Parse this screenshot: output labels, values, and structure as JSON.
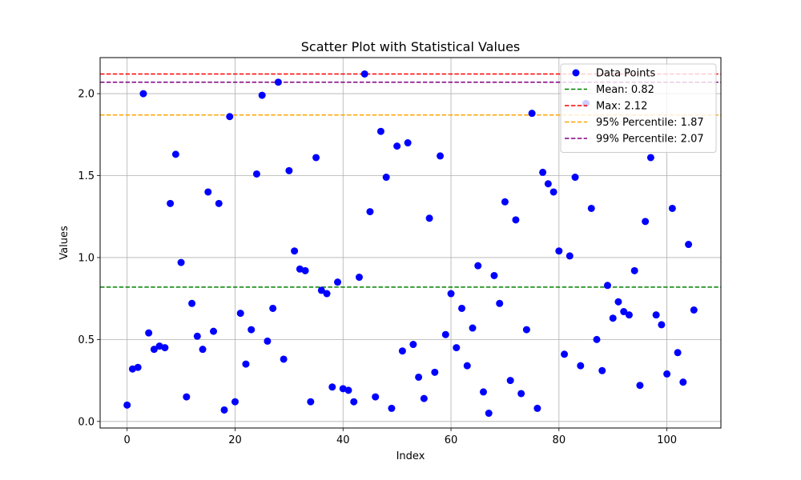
{
  "chart_data": {
    "type": "scatter",
    "title": "Scatter Plot with Statistical Values",
    "xlabel": "Index",
    "ylabel": "Values",
    "xlim": [
      -5,
      110
    ],
    "ylim": [
      -0.04,
      2.22
    ],
    "xticks": [
      0,
      20,
      40,
      60,
      80,
      100
    ],
    "yticks": [
      0.0,
      0.5,
      1.0,
      1.5,
      2.0
    ],
    "xtick_labels": [
      "0",
      "20",
      "40",
      "60",
      "80",
      "100"
    ],
    "ytick_labels": [
      "0.0",
      "0.5",
      "1.0",
      "1.5",
      "2.0"
    ],
    "grid": true,
    "legend_placement": "top-right",
    "series": [
      {
        "name": "Data Points",
        "color": "#0000ff",
        "x": [
          0,
          1,
          2,
          3,
          4,
          5,
          6,
          7,
          8,
          9,
          10,
          11,
          12,
          13,
          14,
          15,
          16,
          17,
          18,
          19,
          20,
          21,
          22,
          23,
          24,
          25,
          26,
          27,
          28,
          29,
          30,
          31,
          32,
          33,
          34,
          35,
          36,
          37,
          38,
          39,
          40,
          41,
          42,
          43,
          44,
          45,
          46,
          47,
          48,
          49,
          50,
          51,
          52,
          53,
          54,
          55,
          56,
          57,
          58,
          59,
          60,
          61,
          62,
          63,
          64,
          65,
          66,
          67,
          68,
          69,
          70,
          71,
          72,
          73,
          74,
          75,
          76,
          77,
          78,
          79,
          80,
          81,
          82,
          83,
          84,
          85,
          86,
          87,
          88,
          89,
          90,
          91,
          92,
          93,
          94,
          95,
          96,
          97,
          98,
          99,
          100,
          101,
          102,
          103,
          104,
          105
        ],
        "y": [
          0.1,
          0.32,
          0.33,
          2.0,
          0.54,
          0.44,
          0.46,
          0.45,
          1.33,
          1.63,
          0.97,
          0.15,
          0.72,
          0.52,
          0.44,
          1.4,
          0.55,
          1.33,
          0.07,
          1.86,
          0.12,
          0.66,
          0.35,
          0.56,
          1.51,
          1.99,
          0.49,
          0.69,
          2.07,
          0.38,
          1.53,
          1.04,
          0.93,
          0.92,
          0.12,
          1.61,
          0.8,
          0.78,
          0.21,
          0.85,
          0.2,
          0.19,
          0.12,
          0.88,
          2.12,
          1.28,
          0.15,
          1.77,
          1.49,
          0.08,
          1.68,
          0.43,
          1.7,
          0.47,
          0.27,
          0.14,
          1.24,
          0.3,
          1.62,
          0.53,
          0.78,
          0.45,
          0.69,
          0.34,
          0.57,
          0.95,
          0.18,
          0.05,
          0.89,
          0.72,
          1.34,
          0.25,
          1.23,
          0.17,
          0.56,
          1.88,
          0.08,
          1.52,
          1.45,
          1.4,
          1.04,
          0.41,
          1.01,
          1.49,
          0.34,
          1.94,
          1.3,
          0.5,
          0.31,
          0.83,
          0.63,
          0.73,
          0.67,
          0.65,
          0.92,
          0.22,
          1.22,
          1.61,
          0.65,
          0.59,
          0.29,
          1.3,
          0.42,
          0.24,
          1.08,
          0.68
        ]
      }
    ],
    "reference_lines": [
      {
        "name": "Mean: 0.82",
        "value": 0.82,
        "color": "#008000"
      },
      {
        "name": "Max: 2.12",
        "value": 2.12,
        "color": "#ff0000"
      },
      {
        "name": "95% Percentile: 1.87",
        "value": 1.87,
        "color": "#ffa500"
      },
      {
        "name": "99% Percentile: 2.07",
        "value": 2.07,
        "color": "#800080"
      }
    ]
  }
}
